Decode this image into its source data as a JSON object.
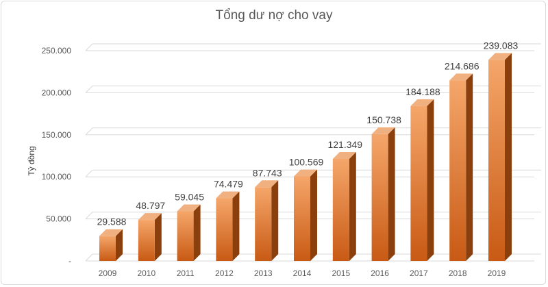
{
  "chart_data": {
    "type": "bar",
    "title": "Tổng dư nợ cho vay",
    "xlabel": "",
    "ylabel": "Tỷ đồng",
    "categories": [
      "2009",
      "2010",
      "2011",
      "2012",
      "2013",
      "2014",
      "2015",
      "2016",
      "2017",
      "2018",
      "2019"
    ],
    "values": [
      29588,
      48797,
      59045,
      74479,
      87743,
      100569,
      121349,
      150738,
      184188,
      214686,
      239083
    ],
    "data_labels": [
      "29.588",
      "48.797",
      "59.045",
      "74.479",
      "87.743",
      "100.569",
      "121.349",
      "150.738",
      "184.188",
      "214.686",
      "239.083"
    ],
    "y_ticks": [
      0,
      50000,
      100000,
      150000,
      200000,
      250000
    ],
    "y_tick_labels": [
      "-",
      "50.000",
      "100.000",
      "150.000",
      "200.000",
      "250.000"
    ],
    "ylim": [
      0,
      250000
    ],
    "grid": true,
    "legend": "none",
    "colors": {
      "bar_front_top": "#f5a66a",
      "bar_front_bottom": "#c85a14",
      "bar_side": "#8a3f0c",
      "bar_top": "#f0b080",
      "gridline": "#d9d9d9"
    }
  }
}
